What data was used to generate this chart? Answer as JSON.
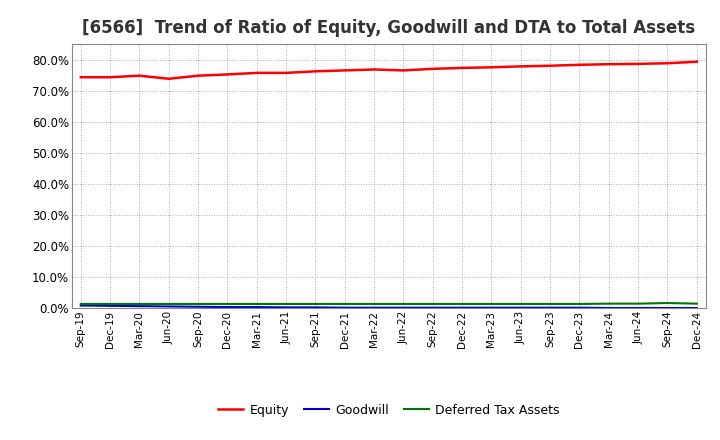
{
  "title": "[6566]  Trend of Ratio of Equity, Goodwill and DTA to Total Assets",
  "x_labels": [
    "Sep-19",
    "Dec-19",
    "Mar-20",
    "Jun-20",
    "Sep-20",
    "Dec-20",
    "Mar-21",
    "Jun-21",
    "Sep-21",
    "Dec-21",
    "Mar-22",
    "Jun-22",
    "Sep-22",
    "Dec-22",
    "Mar-23",
    "Jun-23",
    "Sep-23",
    "Dec-23",
    "Mar-24",
    "Jun-24",
    "Sep-24",
    "Dec-24"
  ],
  "equity": [
    0.743,
    0.743,
    0.748,
    0.738,
    0.748,
    0.752,
    0.757,
    0.757,
    0.762,
    0.765,
    0.768,
    0.765,
    0.77,
    0.773,
    0.775,
    0.778,
    0.78,
    0.783,
    0.785,
    0.786,
    0.788,
    0.793
  ],
  "goodwill": [
    0.008,
    0.007,
    0.006,
    0.005,
    0.004,
    0.003,
    0.003,
    0.002,
    0.002,
    0.001,
    0.001,
    0.001,
    0.001,
    0.001,
    0.001,
    0.001,
    0.001,
    0.001,
    0.0,
    0.0,
    0.0,
    0.0
  ],
  "dta": [
    0.013,
    0.013,
    0.013,
    0.013,
    0.013,
    0.013,
    0.013,
    0.013,
    0.013,
    0.013,
    0.013,
    0.013,
    0.013,
    0.013,
    0.013,
    0.013,
    0.013,
    0.013,
    0.014,
    0.014,
    0.016,
    0.014
  ],
  "equity_color": "#ff0000",
  "goodwill_color": "#0000cc",
  "dta_color": "#007700",
  "ylim": [
    0.0,
    0.85
  ],
  "yticks": [
    0.0,
    0.1,
    0.2,
    0.3,
    0.4,
    0.5,
    0.6,
    0.7,
    0.8
  ],
  "bg_color": "#ffffff",
  "plot_bg_color": "#ffffff",
  "grid_color": "#aaaaaa",
  "title_fontsize": 12,
  "legend_labels": [
    "Equity",
    "Goodwill",
    "Deferred Tax Assets"
  ]
}
